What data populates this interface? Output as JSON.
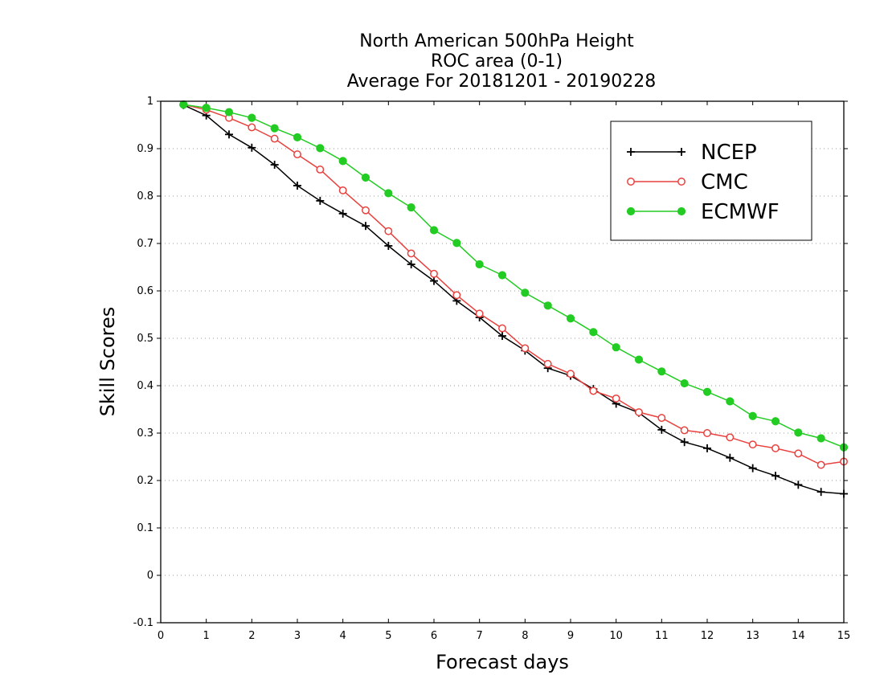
{
  "chart_data": {
    "type": "line",
    "title": [
      "North American 500hPa Height",
      "ROC area (0-1)",
      "Average For 20181201 - 20190228"
    ],
    "xlabel": "Forecast days",
    "ylabel": "Skill Scores",
    "xlim": [
      0,
      15
    ],
    "ylim": [
      -0.1,
      1
    ],
    "xticks": [
      "0",
      "1",
      "2",
      "3",
      "4",
      "5",
      "6",
      "7",
      "8",
      "9",
      "10",
      "11",
      "12",
      "13",
      "14",
      "15"
    ],
    "yticks": [
      "-0.1",
      "0",
      "0.1",
      "0.2",
      "0.3",
      "0.4",
      "0.5",
      "0.6",
      "0.7",
      "0.8",
      "0.9",
      "1"
    ],
    "grid": "horizontal dotted",
    "legend_position": "top-right",
    "x": [
      0.5,
      1.0,
      1.5,
      2.0,
      2.5,
      3.0,
      3.5,
      4.0,
      4.5,
      5.0,
      5.5,
      6.0,
      6.5,
      7.0,
      7.5,
      8.0,
      8.5,
      9.0,
      9.5,
      10.0,
      10.5,
      11.0,
      11.5,
      12.0,
      12.5,
      13.0,
      13.5,
      14.0,
      14.5,
      15.0
    ],
    "series": [
      {
        "name": "NCEP",
        "color": "#000000",
        "marker": "plus",
        "values": [
          0.992,
          0.97,
          0.93,
          0.902,
          0.866,
          0.822,
          0.79,
          0.763,
          0.737,
          0.695,
          0.656,
          0.621,
          0.579,
          0.544,
          0.505,
          0.474,
          0.437,
          0.421,
          0.393,
          0.362,
          0.343,
          0.307,
          0.281,
          0.268,
          0.248,
          0.226,
          0.21,
          0.191,
          0.176,
          0.172
        ]
      },
      {
        "name": "CMC",
        "color": "#e8413e",
        "marker": "open-circle",
        "values": [
          0.993,
          0.982,
          0.965,
          0.945,
          0.921,
          0.888,
          0.856,
          0.812,
          0.77,
          0.726,
          0.679,
          0.636,
          0.591,
          0.552,
          0.521,
          0.479,
          0.446,
          0.425,
          0.389,
          0.373,
          0.344,
          0.332,
          0.306,
          0.3,
          0.291,
          0.276,
          0.268,
          0.257,
          0.233,
          0.24
        ]
      },
      {
        "name": "ECMWF",
        "color": "#22cc22",
        "marker": "filled-circle",
        "values": [
          0.993,
          0.986,
          0.977,
          0.965,
          0.943,
          0.924,
          0.901,
          0.874,
          0.839,
          0.806,
          0.776,
          0.728,
          0.701,
          0.656,
          0.633,
          0.596,
          0.569,
          0.542,
          0.513,
          0.481,
          0.455,
          0.43,
          0.405,
          0.387,
          0.367,
          0.336,
          0.325,
          0.301,
          0.289,
          0.27
        ]
      }
    ]
  }
}
